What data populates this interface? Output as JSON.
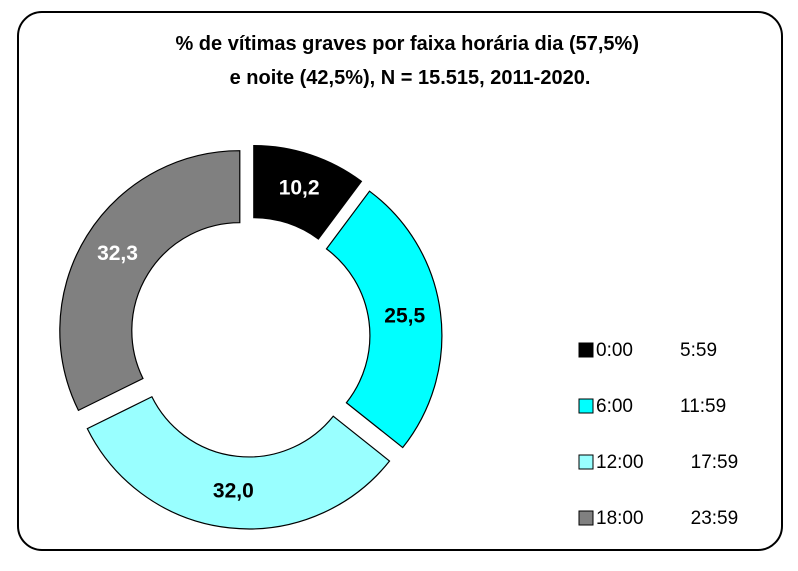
{
  "chart_data": {
    "type": "donut",
    "title": "% de vítimas graves por faixa horária dia (57,5%) e noite (42,5%), N = 15.515, 2011-2020.",
    "categories": [
      "0:00 5:59",
      "6:00 11:59",
      "12:00 17:59",
      "18:00 23:59"
    ],
    "values": [
      10.2,
      25.5,
      32.0,
      32.3
    ],
    "value_labels": [
      "10,2",
      "25,5",
      "32,0",
      "32,3"
    ],
    "colors": [
      "#000000",
      "#00ffff",
      "#99ffff",
      "#808080"
    ],
    "legend": "right"
  }
}
